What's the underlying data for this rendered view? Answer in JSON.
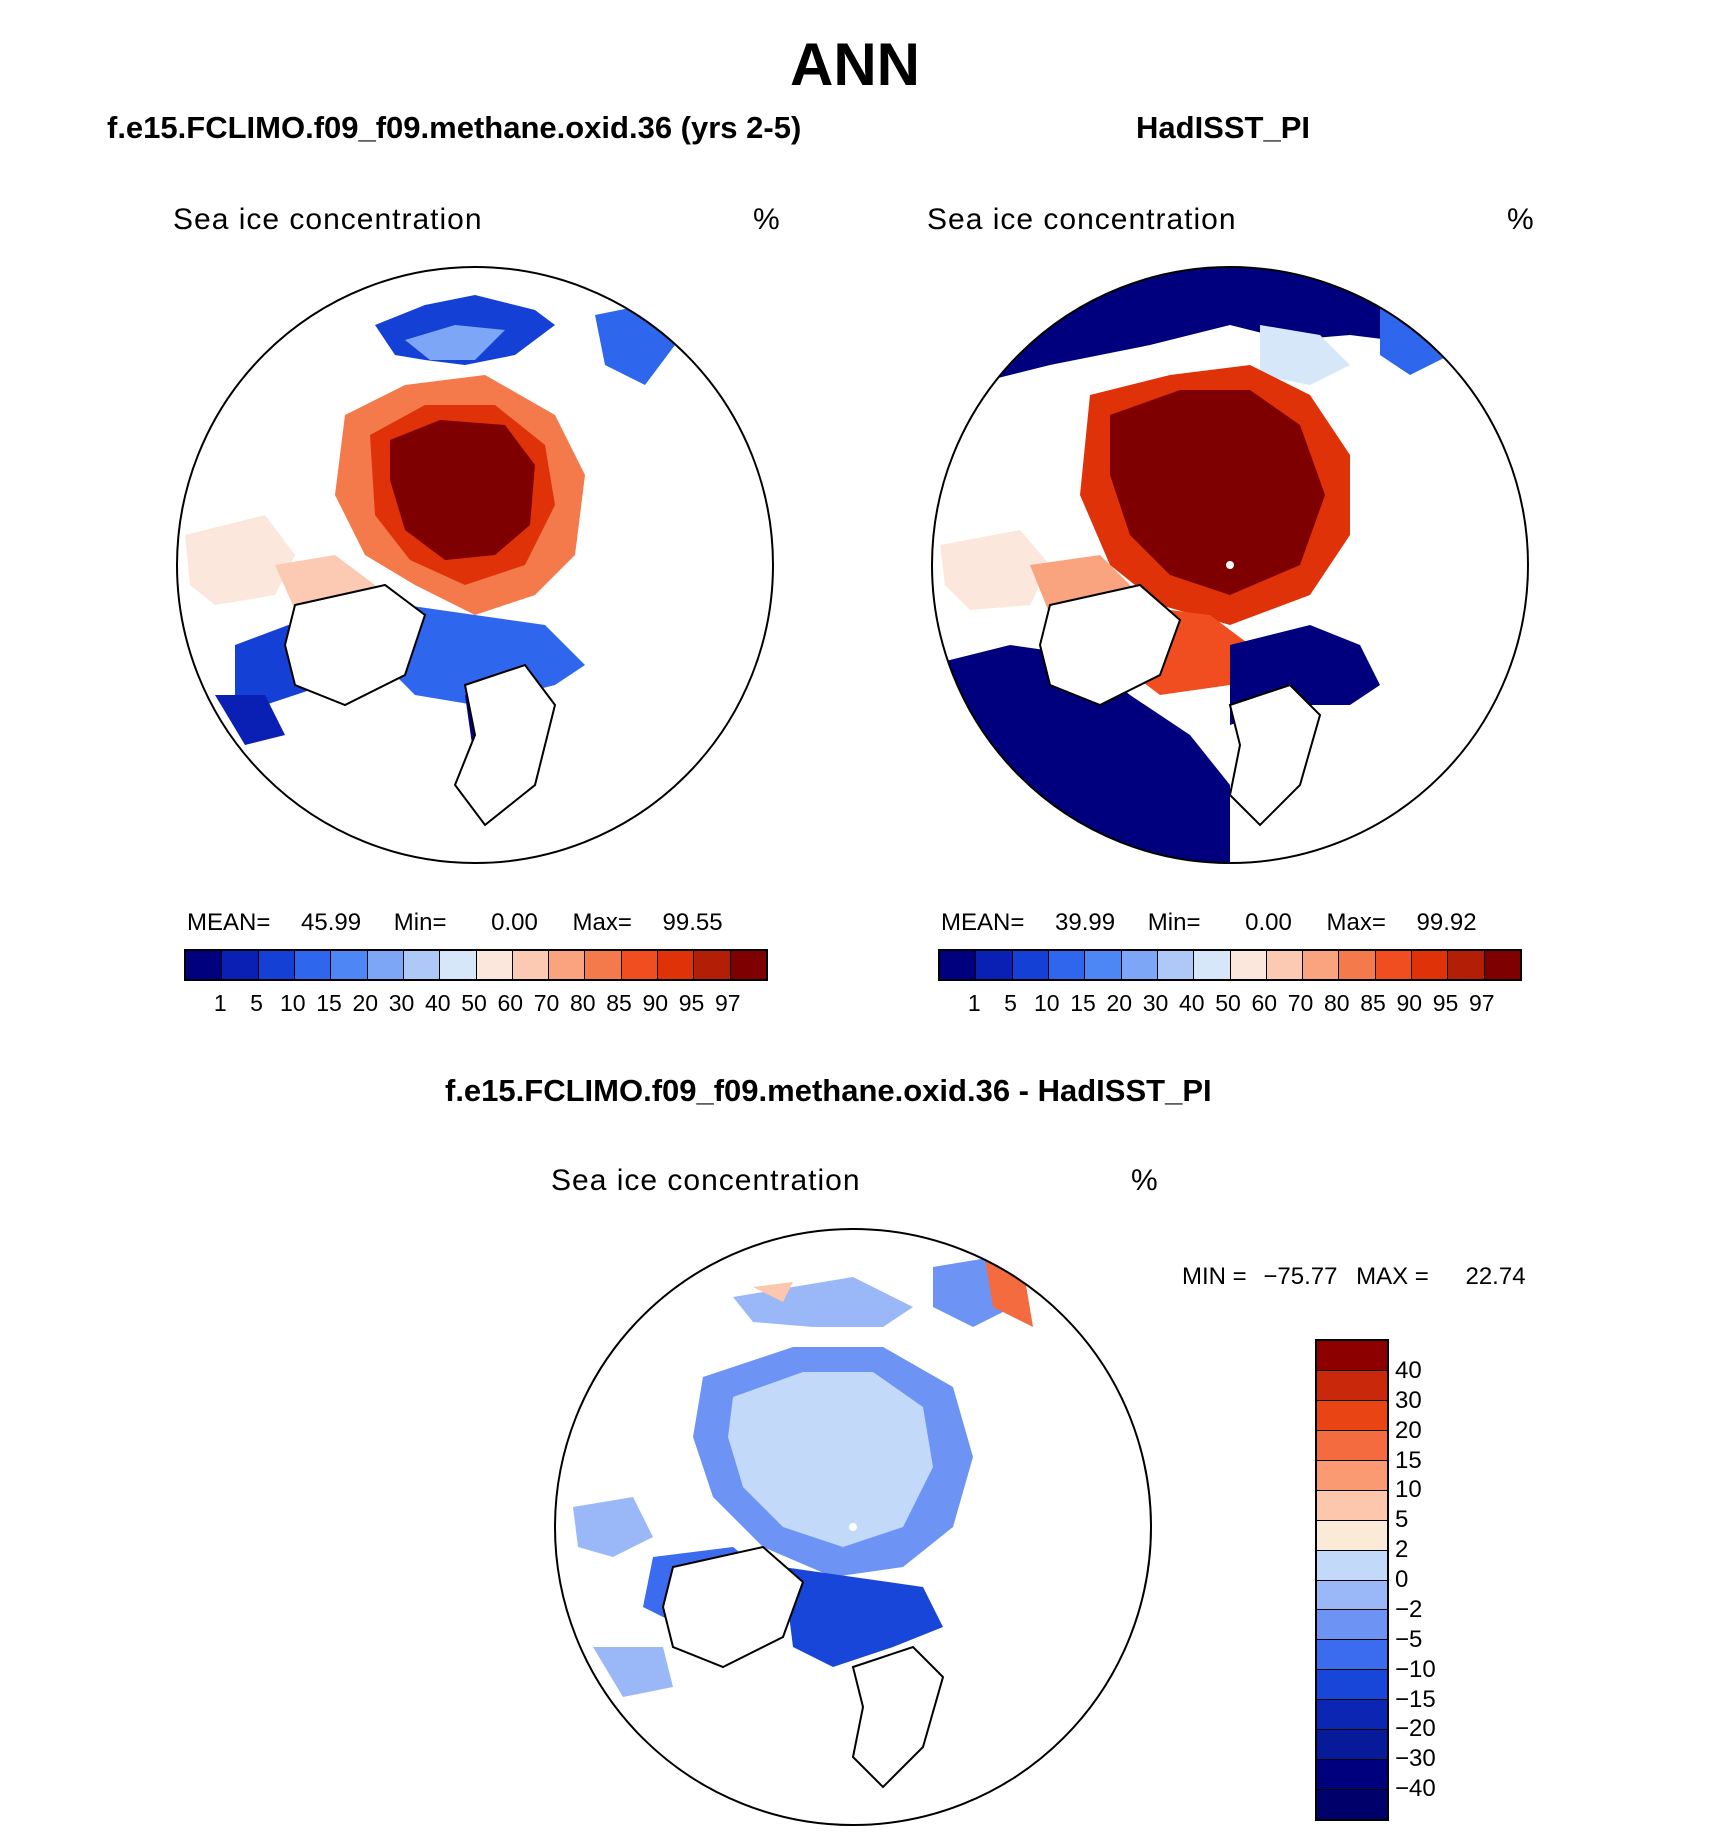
{
  "figure_title": "ANN",
  "colors": {
    "abs_scale": [
      "#00007f",
      "#0a1fb3",
      "#1540d6",
      "#2e66ee",
      "#4d86f5",
      "#7ea6f7",
      "#aec8f8",
      "#d7e7fa",
      "#fbe7dc",
      "#fccab3",
      "#f9a47f",
      "#f47a4c",
      "#f04e21",
      "#df3208",
      "#b21e06",
      "#7f0000"
    ],
    "diff_scale": [
      "#00007f",
      "#0b26b3",
      "#1846d9",
      "#3b6cf0",
      "#6d93f5",
      "#9ab8f7",
      "#c3d9fa",
      "#fcead9",
      "#fcc7ad",
      "#f99a73",
      "#f46b3f",
      "#e94413",
      "#c9290a",
      "#8c0000"
    ]
  },
  "panels": [
    {
      "title": "f.e15.FCLIMO.f09_f09.methane.oxid.36 (yrs 2-5)",
      "variable": "Sea ice concentration",
      "units": "%",
      "stats": {
        "mean_label": "MEAN=",
        "mean": "45.99",
        "min_label": "Min=",
        "min": "0.00",
        "max_label": "Max=",
        "max": "99.55"
      },
      "colorbar_labels": [
        "1",
        "5",
        "10",
        "15",
        "20",
        "30",
        "40",
        "50",
        "60",
        "70",
        "80",
        "85",
        "90",
        "95",
        "97"
      ]
    },
    {
      "title": "HadISST_PI",
      "variable": "Sea ice concentration",
      "units": "%",
      "stats": {
        "mean_label": "MEAN=",
        "mean": "39.99",
        "min_label": "Min=",
        "min": "0.00",
        "max_label": "Max=",
        "max": "99.92"
      },
      "colorbar_labels": [
        "1",
        "5",
        "10",
        "15",
        "20",
        "30",
        "40",
        "50",
        "60",
        "70",
        "80",
        "85",
        "90",
        "95",
        "97"
      ]
    },
    {
      "title": "f.e15.FCLIMO.f09_f09.methane.oxid.36 - HadISST_PI",
      "variable": "Sea ice concentration",
      "units": "%",
      "stats": {
        "min_label": "MIN =",
        "min": "−75.77",
        "max_label": "MAX =",
        "max": "22.74"
      },
      "colorbar_labels": [
        "40",
        "30",
        "20",
        "15",
        "10",
        "5",
        "2",
        "0",
        "−2",
        "−5",
        "−10",
        "−15",
        "−20",
        "−30",
        "−40"
      ]
    }
  ]
}
